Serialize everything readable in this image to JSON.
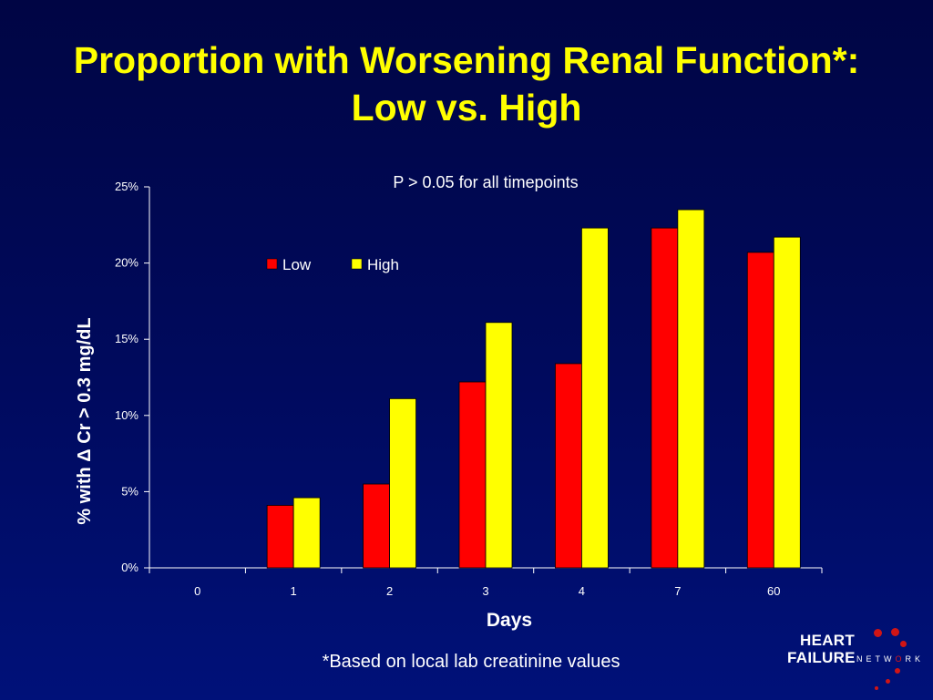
{
  "slide": {
    "title_line1": "Proportion with Worsening Renal Function*:",
    "title_line2": "Low vs. High",
    "footnote": "*Based on local lab creatinine values"
  },
  "logo": {
    "word1": "HEART",
    "word2": "FAILURE",
    "word3_a": "NETW",
    "word3_o": "O",
    "word3_b": "RK"
  },
  "colors": {
    "background": "#000a5e",
    "title": "#ffff00",
    "low": "#ff0000",
    "high": "#ffff00",
    "text": "#ffffff"
  },
  "chart_data": {
    "type": "bar",
    "annotation": "P > 0.05 for all timepoints",
    "xlabel": "Days",
    "ylabel": "% with Δ Cr > 0.3 mg/dL",
    "categories": [
      "0",
      "1",
      "2",
      "3",
      "4",
      "7",
      "60"
    ],
    "series": [
      {
        "name": "Low",
        "color": "#ff0000",
        "values": [
          0,
          4.1,
          5.5,
          12.2,
          13.4,
          22.3,
          20.7
        ]
      },
      {
        "name": "High",
        "color": "#ffff00",
        "values": [
          0,
          4.6,
          11.1,
          16.1,
          22.3,
          23.5,
          21.7
        ]
      }
    ],
    "ylim": [
      0,
      25
    ],
    "yticks": [
      "0%",
      "5%",
      "10%",
      "15%",
      "20%",
      "25%"
    ],
    "ytick_values": [
      0,
      5,
      10,
      15,
      20,
      25
    ],
    "grid": false,
    "legend": "top-center"
  }
}
